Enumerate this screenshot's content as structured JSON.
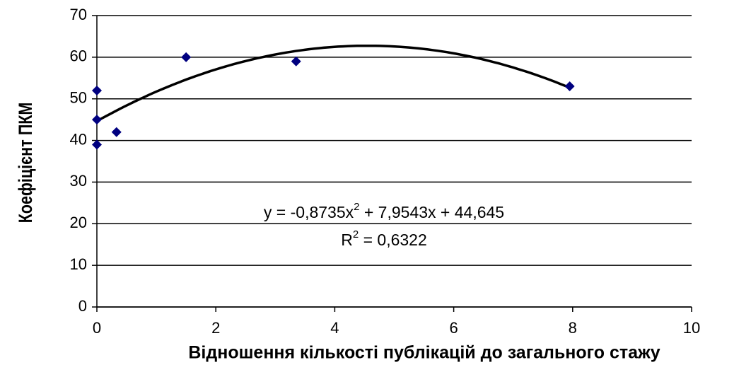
{
  "chart_data": {
    "type": "scatter",
    "y_label": "Коефіцієнт ПКМ",
    "x_label": "Відношення кількості публікацій до загального стажу",
    "series": [
      {
        "color": "#000080",
        "x": [
          0,
          0,
          0,
          0.33,
          1.5,
          3.35,
          7.95
        ],
        "values": [
          52,
          45,
          39,
          42,
          60,
          59,
          53
        ]
      }
    ],
    "trendline": {
      "type": "polynomial",
      "color": "#000000",
      "coefficients": [
        -0.8735,
        7.9543,
        44.645
      ],
      "equation": [
        "y = -0,8735x",
        "2",
        " + 7,9543x + 44,645"
      ],
      "r_squared": [
        "R",
        "2",
        " = 0,6322"
      ]
    },
    "xlim": [
      0,
      10
    ],
    "xticks": [
      0,
      2,
      4,
      6,
      8,
      10
    ],
    "ylim": [
      0,
      70
    ],
    "yticks": [
      0,
      10,
      20,
      30,
      40,
      50,
      60,
      70
    ],
    "grid": true
  }
}
